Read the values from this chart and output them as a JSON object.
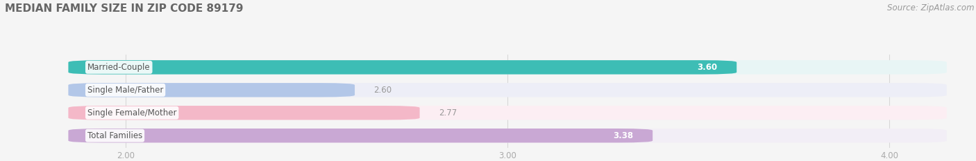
{
  "title": "MEDIAN FAMILY SIZE IN ZIP CODE 89179",
  "source": "Source: ZipAtlas.com",
  "categories": [
    "Married-Couple",
    "Single Male/Father",
    "Single Female/Mother",
    "Total Families"
  ],
  "values": [
    3.6,
    2.6,
    2.77,
    3.38
  ],
  "bar_colors": [
    "#3dbdb5",
    "#b3c7e8",
    "#f4b8c8",
    "#c9a8d4"
  ],
  "bar_bg_colors": [
    "#e8f5f5",
    "#edeef7",
    "#fceef3",
    "#f2eef6"
  ],
  "xlim": [
    1.85,
    4.15
  ],
  "xticks": [
    2.0,
    3.0,
    4.0
  ],
  "bar_height": 0.62,
  "label_fontsize": 8.5,
  "title_fontsize": 11,
  "source_fontsize": 8.5,
  "background_color": "#f5f5f5",
  "value_inside_color": "#ffffff",
  "value_outside_color": "#999999",
  "category_label_color": "#555555",
  "grid_color": "#d8d8d8",
  "tick_color": "#aaaaaa"
}
